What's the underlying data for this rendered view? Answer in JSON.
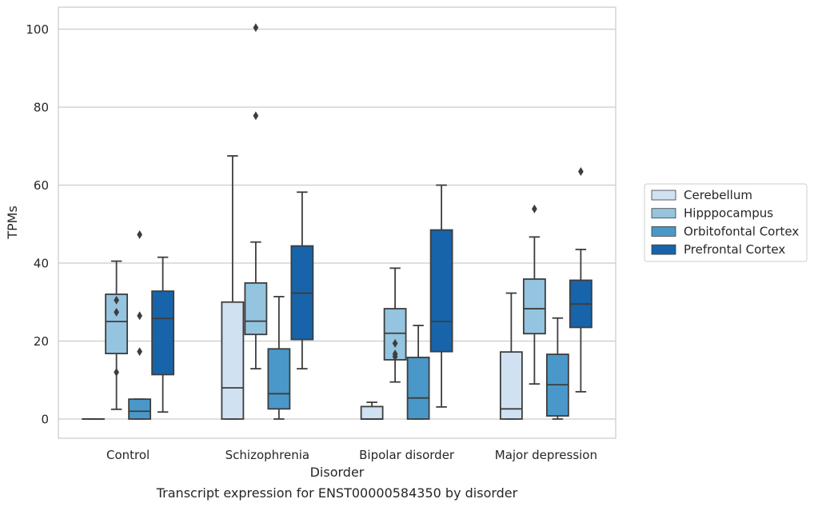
{
  "chart_data": {
    "type": "box",
    "caption": "Transcript expression for ENST00000584350 by disorder",
    "xlabel": "Disorder",
    "ylabel": "TPMs",
    "ylim": [
      -5,
      105
    ],
    "yticks": [
      0,
      20,
      40,
      60,
      80,
      100
    ],
    "grid": true,
    "legend_position": "right",
    "categories": [
      "Control",
      "Schizophrenia",
      "Bipolar disorder",
      "Major depression"
    ],
    "series": [
      {
        "name": "Cerebellum",
        "color": "#d0e1f2",
        "boxes": [
          {
            "whislo": 0,
            "q1": 0,
            "med": 0,
            "q3": 0,
            "whishi": 0,
            "fliers": []
          },
          {
            "whislo": 0,
            "q1": 0,
            "med": 8,
            "q3": 30,
            "whishi": 67.5,
            "fliers": []
          },
          {
            "whislo": 0,
            "q1": 0,
            "med": 0,
            "q3": 3.2,
            "whishi": 4.3,
            "fliers": []
          },
          {
            "whislo": 0,
            "q1": 0,
            "med": 2.6,
            "q3": 17.2,
            "whishi": 32.3,
            "fliers": []
          }
        ]
      },
      {
        "name": "Hipppocampus",
        "color": "#94c4df",
        "boxes": [
          {
            "whislo": 2.5,
            "q1": 16.8,
            "med": 25,
            "q3": 32,
            "whishi": 40.5,
            "fliers": [
              12,
              27.4,
              30.5
            ]
          },
          {
            "whislo": 12.9,
            "q1": 21.7,
            "med": 25.1,
            "q3": 34.9,
            "whishi": 45.4,
            "fliers": [
              77.8,
              100.4
            ]
          },
          {
            "whislo": 9.5,
            "q1": 15.2,
            "med": 22,
            "q3": 28.3,
            "whishi": 38.7,
            "fliers": [
              16,
              16.7,
              19.4
            ]
          },
          {
            "whislo": 9,
            "q1": 21.9,
            "med": 28.3,
            "q3": 35.9,
            "whishi": 46.7,
            "fliers": [
              53.9
            ]
          }
        ]
      },
      {
        "name": "Orbitofontal Cortex",
        "color": "#4a98c9",
        "boxes": [
          {
            "whislo": 0,
            "q1": 0,
            "med": 2,
            "q3": 5.1,
            "whishi": 5.1,
            "fliers": [
              17.3,
              26.5,
              47.3
            ]
          },
          {
            "whislo": 0,
            "q1": 2.6,
            "med": 6.5,
            "q3": 18,
            "whishi": 31.4,
            "fliers": []
          },
          {
            "whislo": 0,
            "q1": 0,
            "med": 5.4,
            "q3": 15.8,
            "whishi": 24,
            "fliers": []
          },
          {
            "whislo": 0,
            "q1": 0.8,
            "med": 8.8,
            "q3": 16.6,
            "whishi": 25.9,
            "fliers": []
          }
        ]
      },
      {
        "name": "Prefrontal Cortex",
        "color": "#1764ab",
        "boxes": [
          {
            "whislo": 1.8,
            "q1": 11.4,
            "med": 25.8,
            "q3": 32.8,
            "whishi": 41.5,
            "fliers": []
          },
          {
            "whislo": 12.9,
            "q1": 20.4,
            "med": 32.3,
            "q3": 44.4,
            "whishi": 58.2,
            "fliers": []
          },
          {
            "whislo": 3.1,
            "q1": 17.3,
            "med": 25,
            "q3": 48.5,
            "whishi": 60,
            "fliers": []
          },
          {
            "whislo": 7,
            "q1": 23.5,
            "med": 29.5,
            "q3": 35.6,
            "whishi": 43.5,
            "fliers": [
              63.5
            ]
          }
        ]
      }
    ]
  }
}
